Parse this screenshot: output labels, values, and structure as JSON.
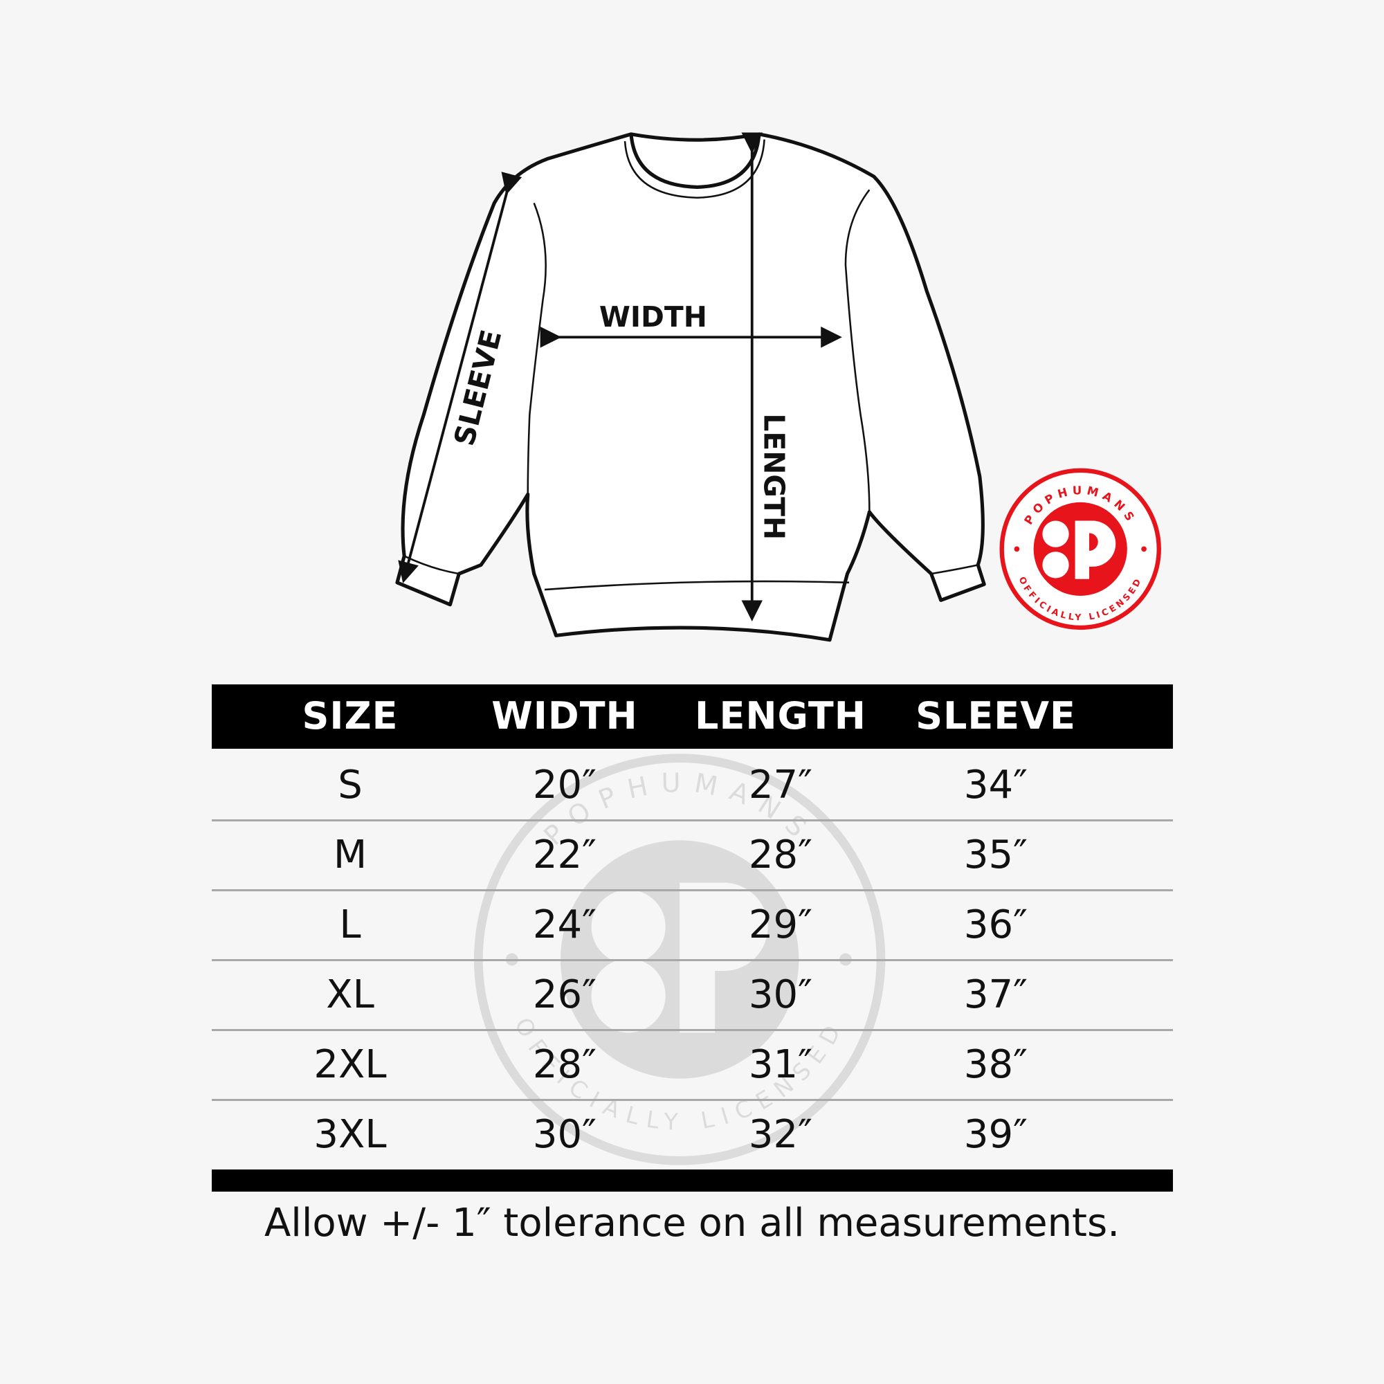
{
  "diagram": {
    "labels": {
      "width": "WIDTH",
      "length": "LENGTH",
      "sleeve": "SLEEVE"
    }
  },
  "badge": {
    "top_text": "POPHUMANS",
    "bottom_text": "OFFICIALLY LICENSED",
    "monogram": "P",
    "color": "#e8141b"
  },
  "table": {
    "headers": [
      "SIZE",
      "WIDTH",
      "LENGTH",
      "SLEEVE"
    ],
    "rows": [
      [
        "S",
        "20″",
        "27″",
        "34″"
      ],
      [
        "M",
        "22″",
        "28″",
        "35″"
      ],
      [
        "L",
        "24″",
        "29″",
        "36″"
      ],
      [
        "XL",
        "26″",
        "30″",
        "37″"
      ],
      [
        "2XL",
        "28″",
        "31″",
        "38″"
      ],
      [
        "3XL",
        "30″",
        "32″",
        "39″"
      ]
    ]
  },
  "footer": "Allow +/- 1″ tolerance on all measurements."
}
